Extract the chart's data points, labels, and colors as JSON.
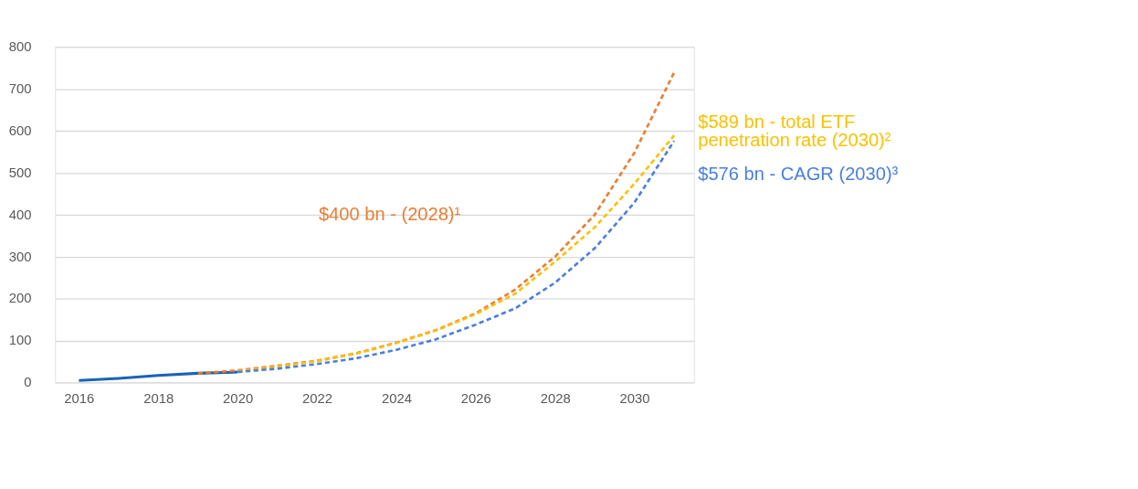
{
  "chart_data": {
    "type": "line",
    "xlim": [
      2015.4,
      2031.5
    ],
    "xticks": [
      2016,
      2018,
      2020,
      2022,
      2024,
      2026,
      2028,
      2030
    ],
    "ylim": [
      0,
      800
    ],
    "yticks": [
      0,
      100,
      200,
      300,
      400,
      500,
      600,
      700,
      800
    ],
    "grid": "y",
    "marker": "none",
    "series": [
      {
        "color": "#1a63b8",
        "line_style": "solid",
        "x": [
          2016,
          2017,
          2018,
          2019,
          2020
        ],
        "values": [
          5,
          10,
          17,
          22,
          25
        ]
      },
      {
        "color": "#ed7d31",
        "line_style": "dashed",
        "x": [
          2019,
          2020,
          2021,
          2022,
          2023,
          2024,
          2025,
          2026,
          2027,
          2028,
          2029,
          2030,
          2031
        ],
        "values": [
          22,
          29,
          40,
          52,
          70,
          95,
          125,
          165,
          222,
          300,
          400,
          548,
          739
        ]
      },
      {
        "color": "#ffc000",
        "line_style": "dashed",
        "x": [
          2020,
          2021,
          2022,
          2023,
          2024,
          2025,
          2026,
          2027,
          2028,
          2029,
          2030,
          2031
        ],
        "values": [
          27,
          38,
          51,
          69,
          94,
          124,
          163,
          212,
          288,
          370,
          474,
          589
        ]
      },
      {
        "color": "#4a7fe0",
        "line_style": "dashed",
        "x": [
          2020,
          2021,
          2022,
          2023,
          2024,
          2025,
          2026,
          2027,
          2028,
          2029,
          2030,
          2031
        ],
        "values": [
          25,
          33,
          44,
          58,
          78,
          103,
          138,
          177,
          238,
          320,
          429,
          576
        ]
      }
    ],
    "annotations": [
      "$400 bn - (2028)¹",
      "$589 bn - total ETF\npenetration rate (2030)²",
      "$576 bn - CAGR (2030)³"
    ]
  }
}
